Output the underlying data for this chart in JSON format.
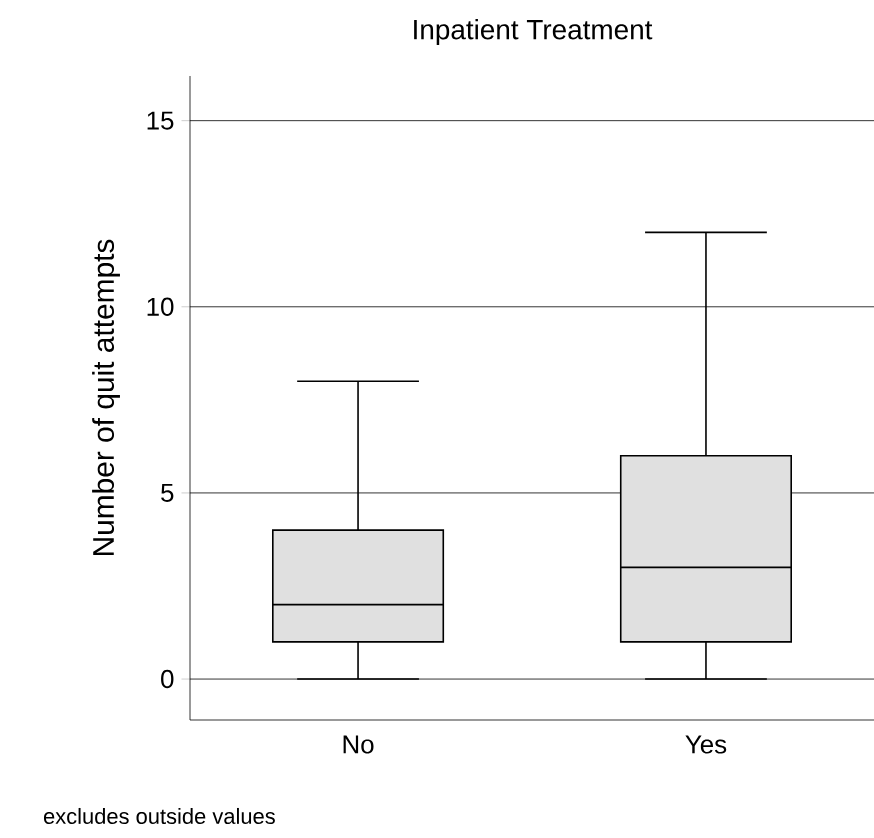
{
  "chart_data": {
    "type": "box",
    "title": "Inpatient Treatment",
    "ylabel": "Number of quit attempts",
    "categories": [
      "No",
      "Yes"
    ],
    "boxes": [
      {
        "low": 0,
        "q1": 1,
        "median": 2,
        "q3": 4,
        "high": 8
      },
      {
        "low": 0,
        "q1": 1,
        "median": 3,
        "q3": 6,
        "high": 12
      }
    ],
    "color": "#e0e0e0",
    "ylim": [
      -1.1,
      16.2
    ],
    "yticks": [
      0,
      5,
      10,
      15
    ],
    "grid": "y",
    "annotations": [
      "excludes outside values"
    ]
  }
}
